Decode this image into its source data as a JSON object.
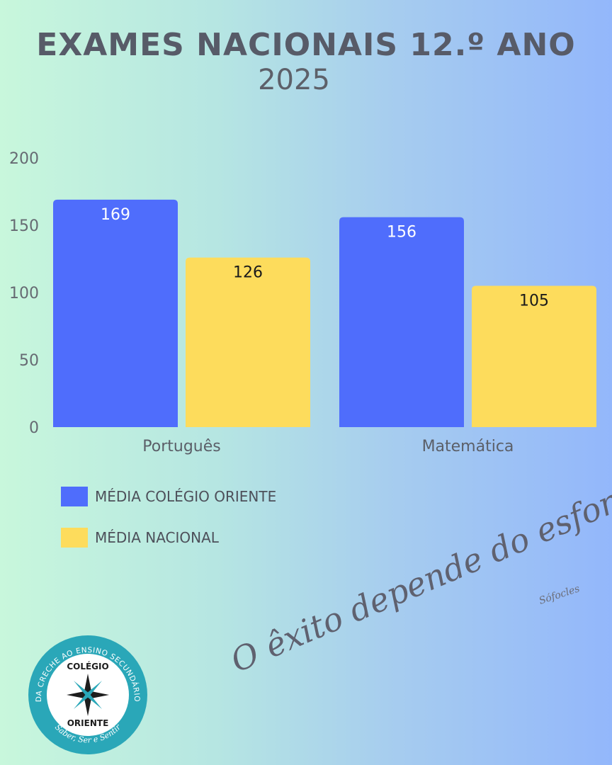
{
  "title": "EXAMES NACIONAIS 12.º ANO",
  "subtitle": "2025",
  "colors": {
    "school": "#4f6dfc",
    "national": "#fddc5c",
    "teal": "#2aa7b8"
  },
  "chart_data": {
    "type": "bar",
    "categories": [
      "Português",
      "Matemática"
    ],
    "series": [
      {
        "name": "MÉDIA COLÉGIO ORIENTE",
        "values": [
          169,
          156
        ],
        "color": "#4f6dfc",
        "label_color": "#ffffff"
      },
      {
        "name": "MÉDIA NACIONAL",
        "values": [
          126,
          105
        ],
        "color": "#fddc5c",
        "label_color": "#1a1a1a"
      }
    ],
    "ylim": [
      0,
      200
    ],
    "yticks": [
      0,
      50,
      100,
      150,
      200
    ],
    "data_labels": true,
    "grid": false,
    "legend": "bottom-left"
  },
  "quote": {
    "text": "O êxito depende do esforço.",
    "author": "Sófocles"
  },
  "logo": {
    "ring_text": "DA CRECHE AO ENSINO SECUNDÁRIO",
    "name_top": "COLÉGIO",
    "name_bottom": "ORIENTE",
    "motto": "Saber, Ser e Sentir"
  }
}
